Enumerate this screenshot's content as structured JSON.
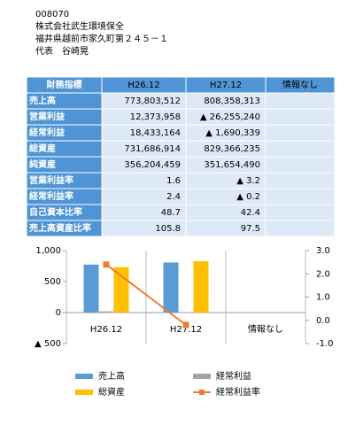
{
  "header": {
    "code": "008070",
    "company": "株式会社武生環境保全",
    "address": "福井県越前市家久町第２４５－１",
    "representative": "代表　谷崎晃"
  },
  "table": {
    "header": [
      "財務指標",
      "H26.12",
      "H27.12",
      "情報なし"
    ],
    "rows": [
      [
        "売上高",
        "773,803,512",
        "808,358,313"
      ],
      [
        "営業利益",
        "12,373,958",
        "▲ 26,255,240"
      ],
      [
        "経常利益",
        "18,433,164",
        "▲ 1,690,339"
      ],
      [
        "総資産",
        "731,686,914",
        "829,366,235"
      ],
      [
        "純資産",
        "356,204,459",
        "351,654,490"
      ],
      [
        "営業利益率",
        "1.6",
        "▲ 3.2"
      ],
      [
        "経常利益率",
        "2.4",
        "▲ 0.2"
      ],
      [
        "自己資本比率",
        "48.7",
        "42.4"
      ],
      [
        "売上高資産比率",
        "105.8",
        "97.5"
      ]
    ]
  },
  "chart_data": {
    "type": "bar",
    "categories": [
      "H26.12",
      "H27.12",
      "情報なし"
    ],
    "series": [
      {
        "name": "売上高",
        "color": "#5b9bd5",
        "values": [
          773.803512,
          808.358313,
          null
        ]
      },
      {
        "name": "経常利益",
        "color": "#a5a5a5",
        "values": [
          18.433164,
          -1.690339,
          null
        ]
      },
      {
        "name": "総資産",
        "color": "#ffc000",
        "values": [
          731.686914,
          829.366235,
          null
        ]
      },
      {
        "name": "経常利益率",
        "color": "#ed7d31",
        "type": "line",
        "axis": "y2",
        "values": [
          2.4,
          -0.2,
          null
        ]
      }
    ],
    "ylim": [
      -500,
      1000
    ],
    "yticks": [
      {
        "value": -500,
        "label": "▲ 500"
      },
      0,
      500,
      {
        "value": 1000,
        "label": "1,000"
      }
    ],
    "y2lim": [
      -1,
      3
    ],
    "y2ticks": [
      {
        "value": -1,
        "label": "-1.0"
      },
      {
        "value": 0,
        "label": "0.0"
      },
      {
        "value": 1,
        "label": "1.0"
      },
      {
        "value": 2,
        "label": "2.0"
      },
      {
        "value": 3,
        "label": "3.0"
      }
    ]
  }
}
